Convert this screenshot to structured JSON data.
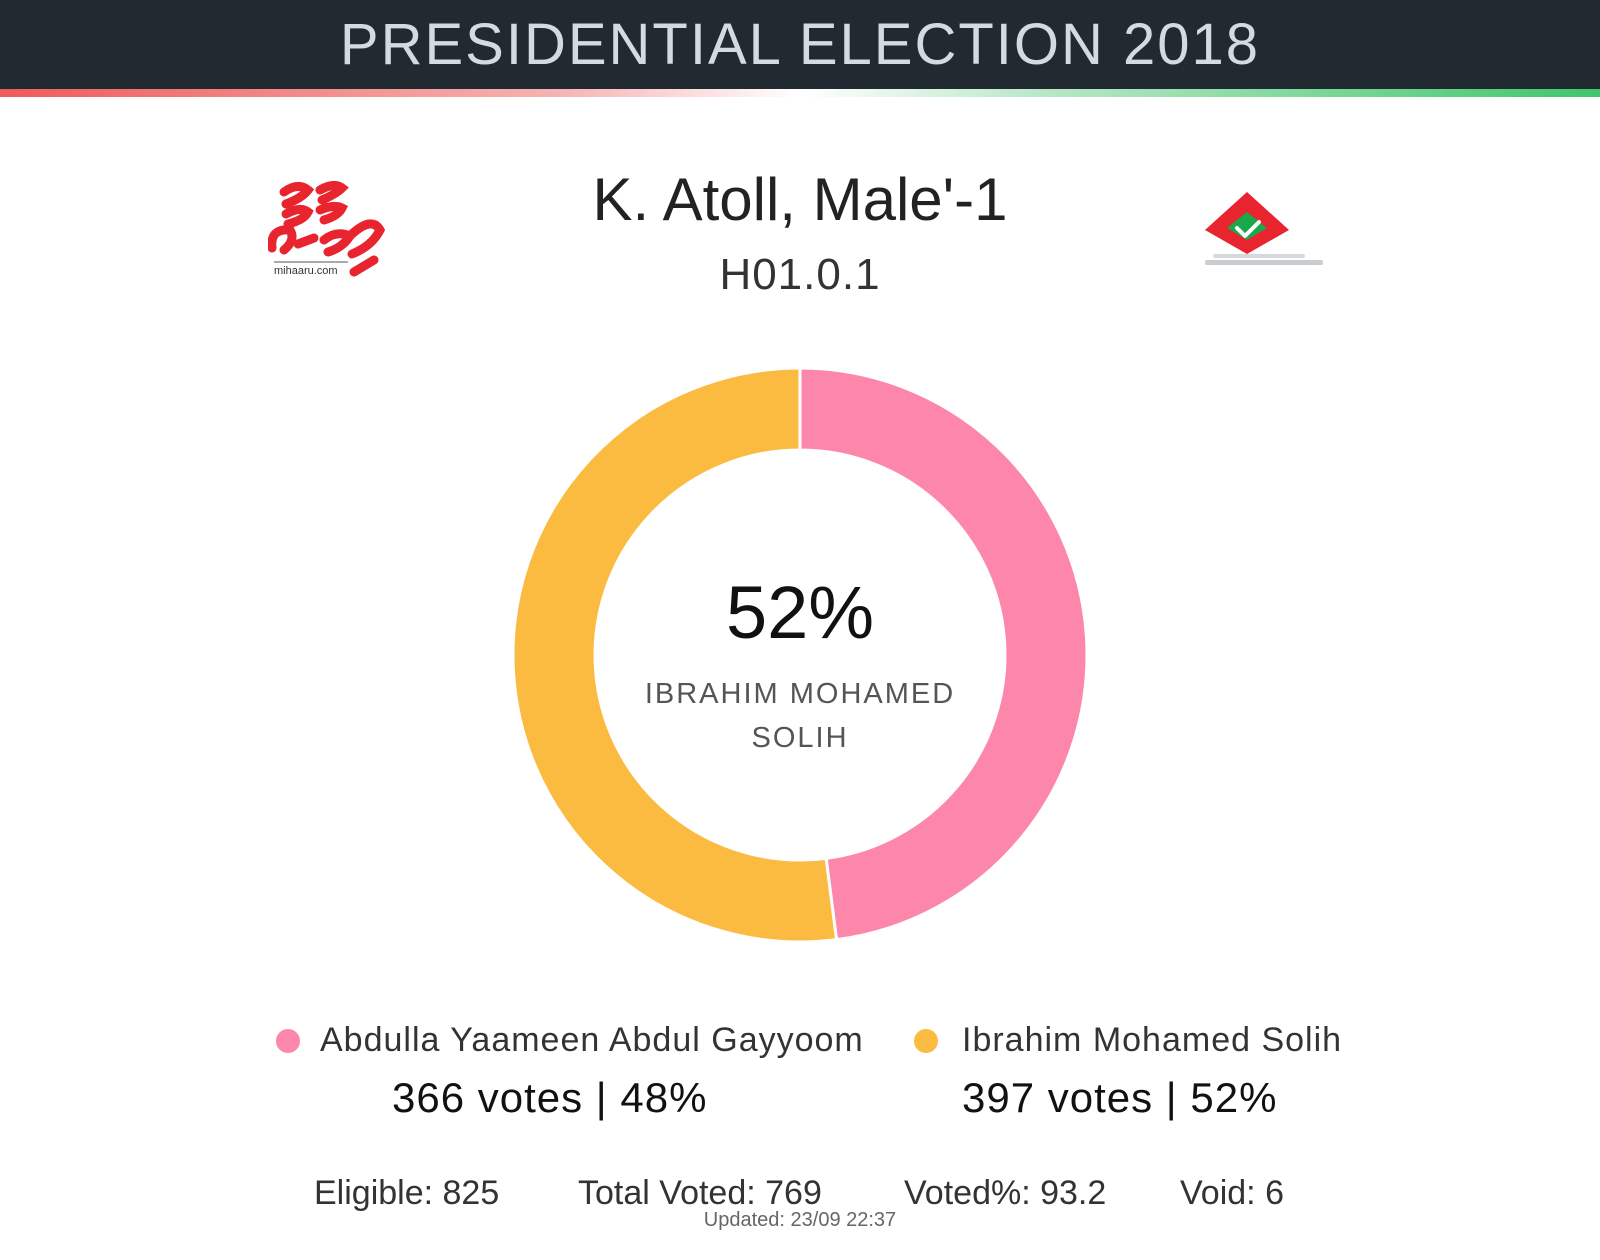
{
  "header": {
    "title": "PRESIDENTIAL ELECTION 2018"
  },
  "logos": {
    "left_text": "mihaaru.com"
  },
  "constituency": {
    "name": "K. Atoll, Male'-1",
    "code": "H01.0.1"
  },
  "center": {
    "percent_label": "52%",
    "name_line1": "IBRAHIM MOHAMED",
    "name_line2": "SOLIH"
  },
  "chart_data": {
    "type": "pie",
    "donut": true,
    "series": [
      {
        "name": "Abdulla Yaameen Abdul Gayyoom",
        "value": 366,
        "percent": 48,
        "color": "#fc87aa"
      },
      {
        "name": "Ibrahim Mohamed Solih",
        "value": 397,
        "percent": 52,
        "color": "#fbbb41"
      }
    ]
  },
  "legend": [
    {
      "name": "Abdulla Yaameen Abdul Gayyoom",
      "votes_label": "366 votes | 48%",
      "color": "#fc87aa"
    },
    {
      "name": "Ibrahim Mohamed Solih",
      "votes_label": "397 votes | 52%",
      "color": "#fbbb41"
    }
  ],
  "stats": {
    "eligible": "Eligible: 825",
    "total_voted": "Total Voted: 769",
    "voted_pct": "Voted%: 93.2",
    "void": "Void: 6"
  },
  "updated": "Updated: 23/09 22:37",
  "colors": {
    "header_bg": "#212931",
    "header_text": "#d4dae0",
    "accent_red": "#e8242e",
    "accent_green": "#19a84a"
  }
}
